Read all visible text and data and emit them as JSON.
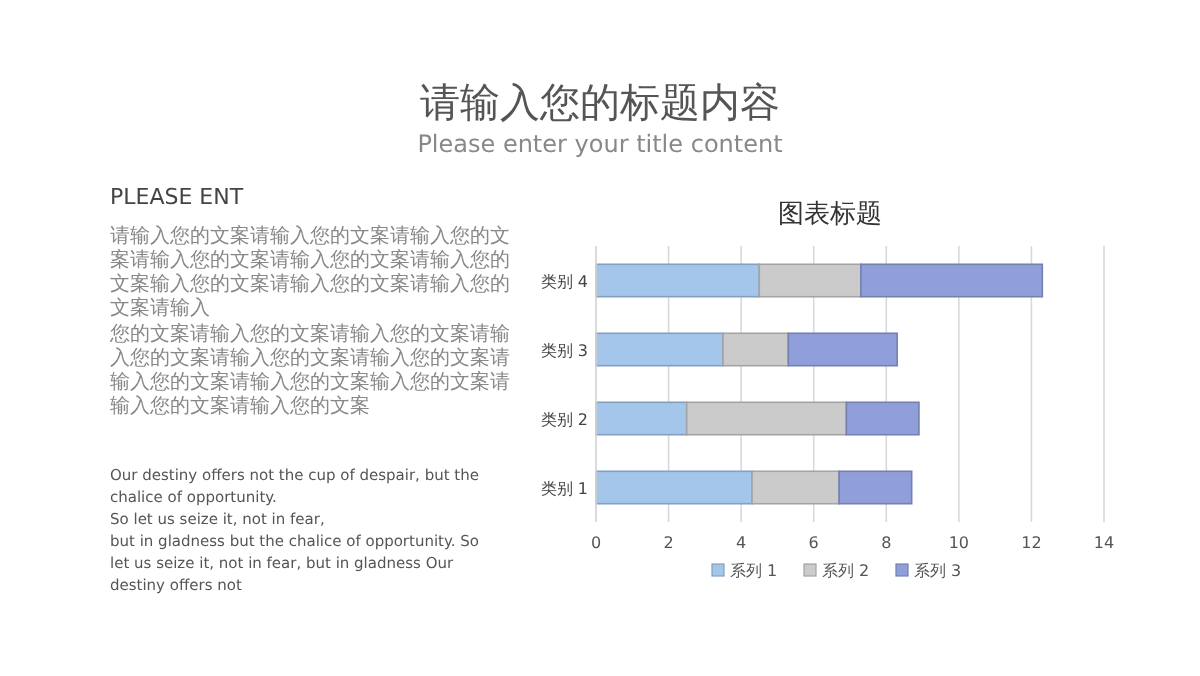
{
  "chart_data": {
    "type": "bar",
    "orientation": "horizontal",
    "stacked": true,
    "title": "图表标题",
    "categories": [
      "类别 4",
      "类别 3",
      "类别 2",
      "类别 1"
    ],
    "series": [
      {
        "name": "系列 1",
        "color": "#a4c6ea",
        "values": [
          4.5,
          3.5,
          2.5,
          4.3
        ]
      },
      {
        "name": "系列 2",
        "color": "#cbcbcb",
        "values": [
          2.8,
          1.8,
          4.4,
          2.4
        ]
      },
      {
        "name": "系列 3",
        "color": "#909fd9",
        "values": [
          5,
          3,
          2,
          2
        ]
      }
    ],
    "xlim": [
      0,
      14
    ],
    "xticks": [
      0,
      2,
      4,
      6,
      8,
      10,
      12,
      14
    ],
    "grid": "x",
    "legend": "bottom",
    "annotations": [
      "请输入您的标题内容",
      "Please enter your title content",
      "PLEASE ENT",
      "请输入您的文案请输入您的文案请输入您的文案请输入您的文案请输入您的文案请输入您的文案输入您的文案请输入您的文案请输入您的文案请输入",
      "您的文案请输入您的文案请输入您的文案请输入您的文案请输入您的文案请输入您的文案请输入您的文案请输入您的文案输入您的文案请输入您的文案请输入您的文案",
      "Our destiny offers not the cup of despair, but the chalice of opportunity.",
      "So let us seize it, not in fear,",
      "but in gladness but the chalice of opportunity. So let us seize it, not in fear, but in gladness Our destiny offers not"
    ]
  }
}
